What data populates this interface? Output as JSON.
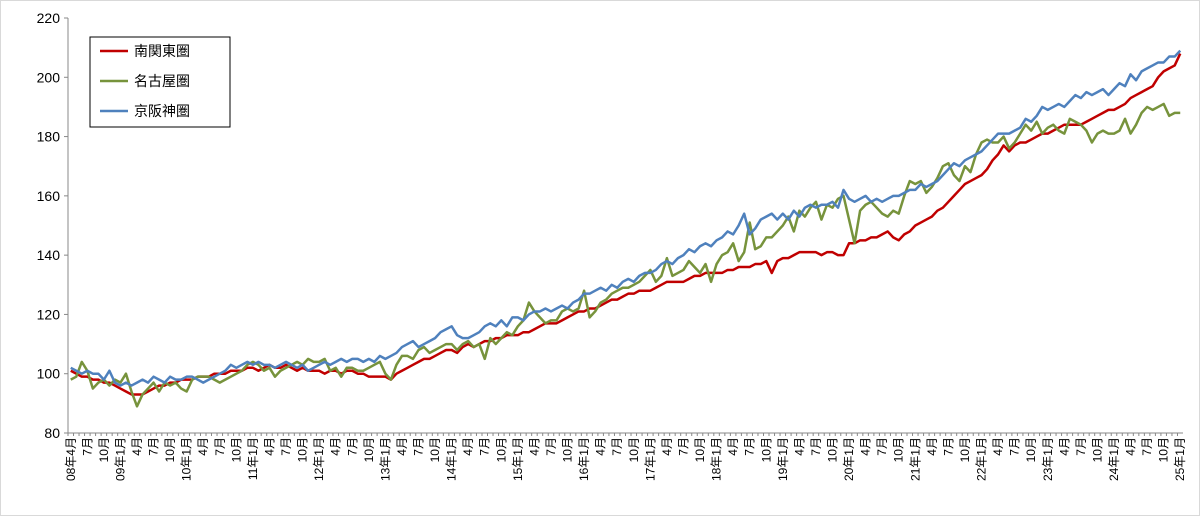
{
  "chart_data": {
    "type": "line",
    "categories": [
      "08年4月",
      null,
      null,
      "7月",
      null,
      null,
      "10月",
      null,
      null,
      "09年1月",
      null,
      null,
      "4月",
      null,
      null,
      "7月",
      null,
      null,
      "10月",
      null,
      null,
      "10年1月",
      null,
      null,
      "4月",
      null,
      null,
      "7月",
      null,
      null,
      "10月",
      null,
      null,
      "11年1月",
      null,
      null,
      "4月",
      null,
      null,
      "7月",
      null,
      null,
      "10月",
      null,
      null,
      "12年1月",
      null,
      null,
      "4月",
      null,
      null,
      "7月",
      null,
      null,
      "10月",
      null,
      null,
      "13年1月",
      null,
      null,
      "4月",
      null,
      null,
      "7月",
      null,
      null,
      "10月",
      null,
      null,
      "14年1月",
      null,
      null,
      "4月",
      null,
      null,
      "7月",
      null,
      null,
      "10月",
      null,
      null,
      "15年1月",
      null,
      null,
      "4月",
      null,
      null,
      "7月",
      null,
      null,
      "10月",
      null,
      null,
      "16年1月",
      null,
      null,
      "4月",
      null,
      null,
      "7月",
      null,
      null,
      "10月",
      null,
      null,
      "17年1月",
      null,
      null,
      "4月",
      null,
      null,
      "7月",
      null,
      null,
      "10月",
      null,
      null,
      "18年1月",
      null,
      null,
      "4月",
      null,
      null,
      "7月",
      null,
      null,
      "10月",
      null,
      null,
      "19年1月",
      null,
      null,
      "4月",
      null,
      null,
      "7月",
      null,
      null,
      "10月",
      null,
      null,
      "20年1月",
      null,
      null,
      "4月",
      null,
      null,
      "7月",
      null,
      null,
      "10月",
      null,
      null,
      "21年1月",
      null,
      null,
      "4月",
      null,
      null,
      "7月",
      null,
      null,
      "10月",
      null,
      null,
      "22年1月",
      null,
      null,
      "4月",
      null,
      null,
      "7月",
      null,
      null,
      "10月",
      null,
      null,
      "23年1月",
      null,
      null,
      "4月",
      null,
      null,
      "7月",
      null,
      null,
      "10月",
      null,
      null,
      "24年1月",
      null,
      null,
      "4月",
      null,
      null,
      "7月",
      null,
      null,
      "10月",
      null,
      null,
      "25年1月"
    ],
    "series": [
      {
        "name": "南関東圏",
        "color": "#c00000",
        "values": [
          101,
          100,
          99,
          99,
          98,
          98,
          97,
          97,
          96,
          95,
          94,
          93,
          93,
          93,
          94,
          95,
          96,
          96,
          97,
          97,
          98,
          98,
          98,
          99,
          99,
          99,
          100,
          100,
          100,
          101,
          101,
          101,
          102,
          102,
          101,
          102,
          103,
          102,
          102,
          103,
          102,
          101,
          102,
          101,
          101,
          101,
          100,
          101,
          101,
          100,
          101,
          101,
          100,
          100,
          99,
          99,
          99,
          99,
          98,
          100,
          101,
          102,
          103,
          104,
          105,
          105,
          106,
          107,
          108,
          108,
          107,
          109,
          110,
          109,
          110,
          111,
          111,
          112,
          112,
          113,
          113,
          113,
          114,
          114,
          115,
          116,
          117,
          117,
          117,
          118,
          119,
          120,
          121,
          121,
          122,
          122,
          123,
          124,
          125,
          125,
          126,
          127,
          127,
          128,
          128,
          128,
          129,
          130,
          131,
          131,
          131,
          131,
          132,
          133,
          133,
          134,
          134,
          134,
          134,
          135,
          135,
          136,
          136,
          136,
          137,
          137,
          138,
          134,
          138,
          139,
          139,
          140,
          141,
          141,
          141,
          141,
          140,
          141,
          141,
          140,
          140,
          144,
          144,
          145,
          145,
          146,
          146,
          147,
          148,
          146,
          145,
          147,
          148,
          150,
          151,
          152,
          153,
          155,
          156,
          158,
          160,
          162,
          164,
          165,
          166,
          167,
          169,
          172,
          174,
          177,
          175,
          177,
          178,
          178,
          179,
          180,
          181,
          181,
          182,
          183,
          184,
          184,
          184,
          184,
          185,
          186,
          187,
          188,
          189,
          189,
          190,
          191,
          193,
          194,
          195,
          196,
          197,
          200,
          202,
          203,
          204,
          208
        ]
      },
      {
        "name": "名古屋圏",
        "color": "#77933c",
        "values": [
          98,
          99,
          104,
          101,
          95,
          97,
          98,
          96,
          98,
          97,
          100,
          94,
          89,
          93,
          95,
          97,
          94,
          97,
          96,
          97,
          95,
          94,
          98,
          99,
          99,
          99,
          98,
          97,
          98,
          99,
          100,
          101,
          103,
          104,
          103,
          101,
          102,
          99,
          101,
          102,
          103,
          104,
          103,
          105,
          104,
          104,
          105,
          101,
          102,
          99,
          102,
          102,
          101,
          101,
          102,
          103,
          104,
          100,
          98,
          103,
          106,
          106,
          105,
          108,
          109,
          107,
          108,
          109,
          110,
          110,
          108,
          110,
          111,
          109,
          110,
          105,
          112,
          110,
          112,
          114,
          113,
          116,
          118,
          124,
          121,
          119,
          117,
          118,
          118,
          121,
          122,
          121,
          122,
          128,
          119,
          121,
          124,
          125,
          127,
          128,
          129,
          129,
          130,
          131,
          133,
          135,
          131,
          133,
          139,
          133,
          134,
          135,
          138,
          136,
          134,
          137,
          131,
          137,
          140,
          141,
          144,
          138,
          141,
          151,
          142,
          143,
          146,
          146,
          148,
          150,
          153,
          148,
          155,
          153,
          156,
          158,
          152,
          157,
          156,
          159,
          160,
          152,
          144,
          155,
          157,
          158,
          156,
          154,
          153,
          155,
          154,
          160,
          165,
          164,
          165,
          161,
          163,
          166,
          170,
          171,
          167,
          165,
          170,
          168,
          174,
          178,
          179,
          178,
          178,
          180,
          176,
          178,
          181,
          184,
          182,
          185,
          181,
          183,
          184,
          182,
          181,
          186,
          185,
          184,
          182,
          178,
          181,
          182,
          181,
          181,
          182,
          186,
          181,
          184,
          188,
          190,
          189,
          190,
          191,
          187,
          188,
          188
        ]
      },
      {
        "name": "京阪神圏",
        "color": "#4f81bd",
        "values": [
          102,
          101,
          100,
          101,
          100,
          100,
          98,
          101,
          97,
          96,
          97,
          96,
          97,
          98,
          97,
          99,
          98,
          97,
          99,
          98,
          98,
          99,
          99,
          98,
          97,
          98,
          99,
          100,
          101,
          103,
          102,
          103,
          104,
          103,
          104,
          103,
          103,
          102,
          103,
          104,
          103,
          102,
          103,
          101,
          102,
          103,
          104,
          103,
          104,
          105,
          104,
          105,
          105,
          104,
          105,
          104,
          106,
          105,
          106,
          107,
          109,
          110,
          111,
          109,
          110,
          111,
          112,
          114,
          115,
          116,
          113,
          112,
          112,
          113,
          114,
          116,
          117,
          116,
          118,
          116,
          119,
          119,
          118,
          120,
          121,
          121,
          122,
          121,
          122,
          123,
          122,
          124,
          125,
          127,
          127,
          128,
          129,
          128,
          130,
          129,
          131,
          132,
          131,
          133,
          134,
          134,
          135,
          137,
          138,
          137,
          139,
          140,
          142,
          141,
          143,
          144,
          143,
          145,
          146,
          148,
          147,
          150,
          154,
          147,
          149,
          152,
          153,
          154,
          152,
          154,
          152,
          155,
          153,
          156,
          157,
          156,
          157,
          157,
          158,
          156,
          162,
          159,
          158,
          159,
          160,
          158,
          159,
          158,
          159,
          160,
          160,
          161,
          162,
          162,
          164,
          163,
          164,
          165,
          167,
          169,
          171,
          170,
          172,
          173,
          174,
          175,
          177,
          179,
          181,
          181,
          181,
          182,
          183,
          186,
          185,
          187,
          190,
          189,
          190,
          191,
          190,
          192,
          194,
          193,
          195,
          194,
          195,
          196,
          194,
          196,
          198,
          197,
          201,
          199,
          202,
          203,
          204,
          205,
          205,
          207,
          207,
          209
        ]
      }
    ],
    "ylim": [
      80,
      220
    ],
    "yticks": [
      80,
      100,
      120,
      140,
      160,
      180,
      200,
      220
    ],
    "grid": false,
    "legend": "top-left"
  }
}
